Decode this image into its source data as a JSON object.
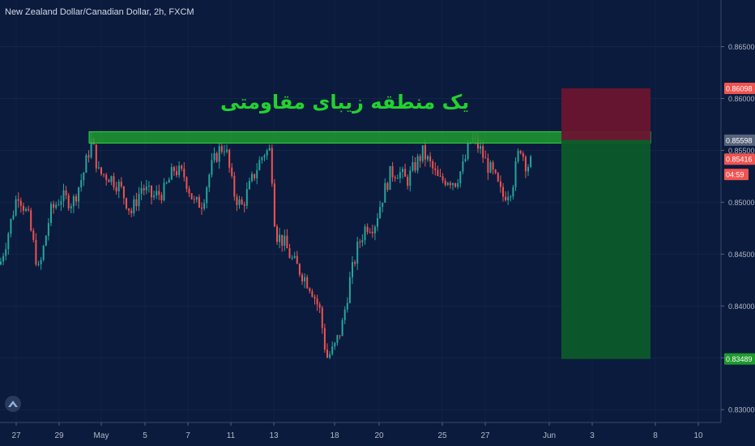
{
  "header": {
    "title": "New Zealand Dollar/Canadian Dollar, 2h, FXCM"
  },
  "annotation": {
    "text": "یک منطقه زیبای مقاومتی"
  },
  "colors": {
    "background": "#0b1b3d",
    "up": "#26a69a",
    "down": "#ef5350",
    "zone": "#1f9a2f",
    "stop_box": "#6b1530",
    "target_box": "#0d5a2a",
    "annotation": "#22d22f"
  },
  "chart_data": {
    "type": "candlestick",
    "title": "New Zealand Dollar/Canadian Dollar, 2h, FXCM",
    "ylim": [
      0.8265,
      0.8695
    ],
    "y_ticks": [
      "0.86500",
      "0.86000",
      "0.85500",
      "0.85000",
      "0.84500",
      "0.84000",
      "0.83500",
      "0.83000"
    ],
    "x_ticks": [
      "27",
      "29",
      "May",
      "5",
      "7",
      "11",
      "13",
      "18",
      "20",
      "25",
      "27",
      "Jun",
      "3",
      "8",
      "10"
    ],
    "price_labels": [
      {
        "text": "0.86098",
        "value": 0.86098,
        "color": "#ef5350"
      },
      {
        "text": "0.85598",
        "value": 0.85598,
        "color": "#55627a"
      },
      {
        "text": "0.85416",
        "value": 0.85416,
        "color": "#ef5350"
      },
      {
        "text": "04:59",
        "value": 0.85268,
        "color": "#ef5350"
      },
      {
        "text": "0.83489",
        "value": 0.83489,
        "color": "#1f9a2f"
      }
    ],
    "resistance_zone": {
      "low": 0.8557,
      "high": 0.8568
    },
    "position": {
      "entry": 0.85598,
      "stop": 0.86098,
      "target": 0.83489
    },
    "price_path": [
      [
        0,
        0.844
      ],
      [
        10,
        0.847
      ],
      [
        22,
        0.851
      ],
      [
        35,
        0.8485
      ],
      [
        48,
        0.8432
      ],
      [
        62,
        0.849
      ],
      [
        75,
        0.8505
      ],
      [
        90,
        0.85
      ],
      [
        103,
        0.8528
      ],
      [
        113,
        0.856
      ],
      [
        122,
        0.8528
      ],
      [
        135,
        0.8525
      ],
      [
        148,
        0.8515
      ],
      [
        162,
        0.849
      ],
      [
        175,
        0.8515
      ],
      [
        188,
        0.8505
      ],
      [
        202,
        0.851
      ],
      [
        215,
        0.8532
      ],
      [
        228,
        0.8525
      ],
      [
        240,
        0.8498
      ],
      [
        250,
        0.85
      ],
      [
        260,
        0.8532
      ],
      [
        270,
        0.855
      ],
      [
        278,
        0.8555
      ],
      [
        288,
        0.851
      ],
      [
        298,
        0.8495
      ],
      [
        308,
        0.8515
      ],
      [
        318,
        0.8535
      ],
      [
        326,
        0.8548
      ],
      [
        334,
        0.855
      ],
      [
        340,
        0.847
      ],
      [
        350,
        0.8462
      ],
      [
        360,
        0.8445
      ],
      [
        372,
        0.8432
      ],
      [
        384,
        0.8418
      ],
      [
        395,
        0.8395
      ],
      [
        403,
        0.835
      ],
      [
        412,
        0.8358
      ],
      [
        422,
        0.838
      ],
      [
        432,
        0.8425
      ],
      [
        442,
        0.8458
      ],
      [
        452,
        0.8478
      ],
      [
        462,
        0.8478
      ],
      [
        472,
        0.8505
      ],
      [
        482,
        0.8528
      ],
      [
        492,
        0.853
      ],
      [
        502,
        0.852
      ],
      [
        512,
        0.8535
      ],
      [
        522,
        0.8548
      ],
      [
        532,
        0.8535
      ],
      [
        542,
        0.852
      ],
      [
        552,
        0.8523
      ],
      [
        562,
        0.852
      ],
      [
        572,
        0.8535
      ],
      [
        582,
        0.8562
      ],
      [
        592,
        0.8552
      ],
      [
        600,
        0.8538
      ],
      [
        610,
        0.8525
      ],
      [
        620,
        0.8505
      ],
      [
        632,
        0.8515
      ],
      [
        642,
        0.8555
      ],
      [
        650,
        0.8535
      ],
      [
        658,
        0.854
      ]
    ]
  }
}
